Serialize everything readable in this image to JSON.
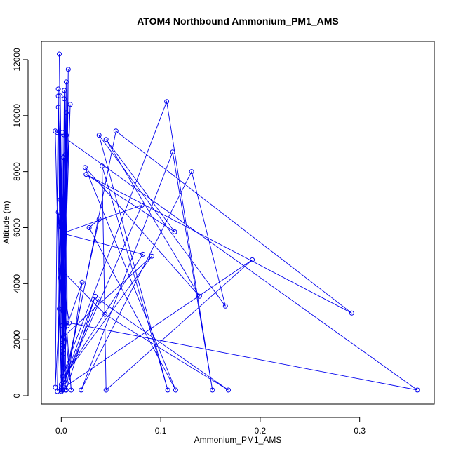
{
  "chart_data": {
    "type": "line",
    "title": "ATOM4 Northbound Ammonium_PM1_AMS",
    "xlabel": "Ammonium_PM1_AMS",
    "ylabel": "Altitude (m)",
    "xlim": [
      -0.02,
      0.375
    ],
    "ylim": [
      -300,
      12650
    ],
    "x_ticks": [
      0,
      0.1,
      0.2,
      0.3
    ],
    "x_tick_labels": [
      "0.0",
      "0.1",
      "0.2",
      "0.3"
    ],
    "y_ticks": [
      0,
      2000,
      4000,
      6000,
      8000,
      10000,
      12000
    ],
    "y_tick_labels": [
      "0",
      "2000",
      "4000",
      "6000",
      "8000",
      "10000",
      "12000"
    ],
    "grid": false,
    "legend": "none",
    "line_color": "#0000ee",
    "series": [
      {
        "name": "",
        "points": [
          [
            0.0,
            150
          ],
          [
            0.003,
            1000
          ],
          [
            -0.003,
            10700
          ],
          [
            0.001,
            1700
          ],
          [
            -0.002,
            12200
          ],
          [
            0.002,
            500
          ],
          [
            0.007,
            11650
          ],
          [
            0.004,
            200
          ],
          [
            0.005,
            11200
          ],
          [
            0.001,
            2000
          ],
          [
            0.003,
            10900
          ],
          [
            0.002,
            3000
          ],
          [
            -0.001,
            10700
          ],
          [
            0.001,
            4000
          ],
          [
            0.009,
            10400
          ],
          [
            0.0,
            300
          ],
          [
            -0.003,
            10300
          ],
          [
            0.006,
            2500
          ],
          [
            0.005,
            10100
          ],
          [
            0.002,
            1500
          ],
          [
            0.003,
            10600
          ],
          [
            0.004,
            8600
          ],
          [
            0.002,
            600
          ],
          [
            0.005,
            9300
          ],
          [
            0.001,
            2500
          ],
          [
            0.001,
            9400
          ],
          [
            0.0,
            6000
          ],
          [
            0.001,
            1800
          ],
          [
            0.002,
            8500
          ],
          [
            0.001,
            700
          ],
          [
            0.106,
            10500
          ],
          [
            0.152,
            200
          ],
          [
            0.112,
            8700
          ],
          [
            0.02,
            200
          ],
          [
            0.131,
            8000
          ],
          [
            0.165,
            3200
          ],
          [
            0.038,
            9300
          ],
          [
            0.107,
            200
          ],
          [
            0.041,
            8200
          ],
          [
            0.045,
            200
          ],
          [
            0.192,
            4850
          ],
          [
            0.003,
            300
          ],
          [
            0.055,
            9450
          ],
          [
            0.292,
            2950
          ],
          [
            0.025,
            7900
          ],
          [
            0.114,
            5850
          ],
          [
            0.045,
            9150
          ],
          [
            0.139,
            3550
          ],
          [
            0.024,
            8150
          ],
          [
            0.115,
            200
          ],
          [
            0.028,
            6000
          ],
          [
            0.038,
            6300
          ],
          [
            0.003,
            500
          ],
          [
            0.081,
            6800
          ],
          [
            0.001,
            5800
          ],
          [
            0.082,
            5050
          ],
          [
            0.003,
            700
          ],
          [
            0.091,
            4980
          ],
          [
            0.002,
            2100
          ],
          [
            0.021,
            4050
          ],
          [
            0.005,
            200
          ],
          [
            0.034,
            3550
          ],
          [
            0.0,
            250
          ],
          [
            0.037,
            3450
          ],
          [
            0.168,
            200
          ],
          [
            0.044,
            2900
          ],
          [
            0.0,
            4500
          ],
          [
            0.008,
            2600
          ],
          [
            0.358,
            200
          ],
          [
            -0.004,
            9400
          ],
          [
            -0.006,
            9450
          ],
          [
            0.0,
            400
          ],
          [
            -0.002,
            3100
          ],
          [
            0.003,
            8500
          ],
          [
            0.0,
            200
          ],
          [
            -0.003,
            6550
          ],
          [
            0.01,
            200
          ],
          [
            -0.001,
            4200
          ],
          [
            -0.004,
            150
          ],
          [
            -0.001,
            7000
          ],
          [
            0.001,
            200
          ],
          [
            0.002,
            5500
          ],
          [
            -0.006,
            300
          ],
          [
            -0.003,
            10950
          ],
          [
            0.0,
            150
          ]
        ]
      }
    ]
  }
}
